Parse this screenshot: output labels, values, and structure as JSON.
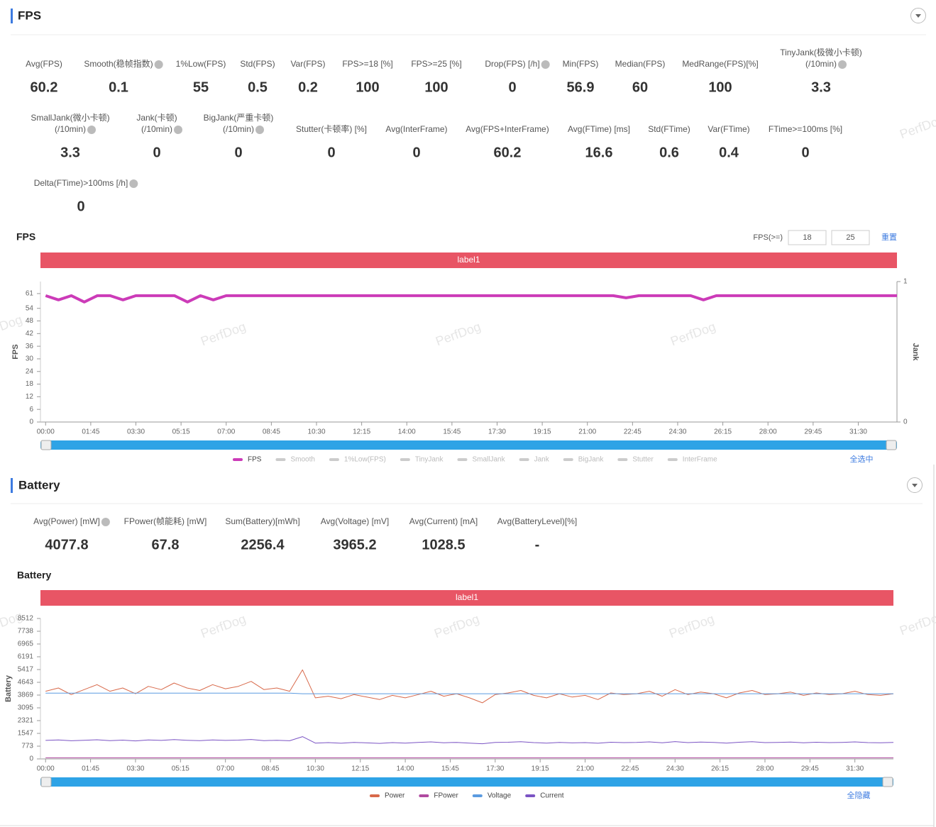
{
  "watermark": "PerfDog",
  "fps": {
    "title": "FPS",
    "metrics": [
      [
        {
          "label": [
            "Avg(FPS)"
          ],
          "value": 60.2
        },
        {
          "label": [
            "Smooth(稳帧指数)"
          ],
          "value": 0.1,
          "help": true
        },
        {
          "label": [
            "1%Low(FPS)"
          ],
          "value": 55
        },
        {
          "label": [
            "Std(FPS)"
          ],
          "value": 0.5
        },
        {
          "label": [
            "Var(FPS)"
          ],
          "value": 0.2
        },
        {
          "label": [
            "FPS>=18 [%]"
          ],
          "value": 100
        },
        {
          "label": [
            "FPS>=25 [%]"
          ],
          "value": 100
        },
        {
          "label": [
            "Drop(FPS) [/h]"
          ],
          "value": 0,
          "help": true
        },
        {
          "label": [
            "Min(FPS)"
          ],
          "value": 56.9
        },
        {
          "label": [
            "Median(FPS)"
          ],
          "value": 60
        },
        {
          "label": [
            "MedRange(FPS)[%]"
          ],
          "value": 100
        },
        {
          "label": [
            "TinyJank(极微小卡顿)",
            "(/10min)"
          ],
          "value": 3.3,
          "help": true
        }
      ],
      [
        {
          "label": [
            "SmallJank(微小卡顿)",
            "(/10min)"
          ],
          "value": 3.3,
          "help": true
        },
        {
          "label": [
            "Jank(卡顿)",
            "(/10min)"
          ],
          "value": 0,
          "help": true
        },
        {
          "label": [
            "BigJank(严重卡顿)",
            "(/10min)"
          ],
          "value": 0,
          "help": true
        },
        {
          "label": [
            "Stutter(卡顿率) [%]"
          ],
          "value": 0
        },
        {
          "label": [
            "Avg(InterFrame)"
          ],
          "value": 0
        },
        {
          "label": [
            "Avg(FPS+InterFrame)"
          ],
          "value": 60.2
        },
        {
          "label": [
            "Avg(FTime) [ms]"
          ],
          "value": 16.6
        },
        {
          "label": [
            "Std(FTime)"
          ],
          "value": 0.6
        },
        {
          "label": [
            "Var(FTime)"
          ],
          "value": 0.4
        },
        {
          "label": [
            "FTime>=100ms [%]"
          ],
          "value": 0
        }
      ],
      [
        {
          "label": [
            "Delta(FTime)>100ms [/h]"
          ],
          "value": 0,
          "help": true
        }
      ]
    ],
    "chart": {
      "type": "line",
      "title": "FPS",
      "threshold_label": "FPS(>=)",
      "thresholds": [
        18,
        25
      ],
      "reset": "重置",
      "band_label": "label1",
      "band_color": "#e85565",
      "y_label": "FPS",
      "y2_label": "Jank",
      "select_all": "全选中",
      "xlim": [
        -12,
        1980
      ],
      "ylim": [
        0,
        66.7
      ],
      "yticks": [
        0,
        6,
        12,
        18,
        24,
        30,
        36,
        42,
        48,
        54,
        61
      ],
      "y2lim": [
        0,
        1
      ],
      "y2ticks": [
        0,
        1
      ],
      "xticks": [
        {
          "value": 0,
          "label": "00:00"
        },
        {
          "value": 105,
          "label": "01:45"
        },
        {
          "value": 210,
          "label": "03:30"
        },
        {
          "value": 315,
          "label": "05:15"
        },
        {
          "value": 420,
          "label": "07:00"
        },
        {
          "value": 525,
          "label": "08:45"
        },
        {
          "value": 630,
          "label": "10:30"
        },
        {
          "value": 735,
          "label": "12:15"
        },
        {
          "value": 840,
          "label": "14:00"
        },
        {
          "value": 945,
          "label": "15:45"
        },
        {
          "value": 1050,
          "label": "17:30"
        },
        {
          "value": 1155,
          "label": "19:15"
        },
        {
          "value": 1260,
          "label": "21:00"
        },
        {
          "value": 1365,
          "label": "22:45"
        },
        {
          "value": 1470,
          "label": "24:30"
        },
        {
          "value": 1575,
          "label": "26:15"
        },
        {
          "value": 1680,
          "label": "28:00"
        },
        {
          "value": 1785,
          "label": "29:45"
        },
        {
          "value": 1890,
          "label": "31:30"
        }
      ],
      "x": [
        0,
        30,
        60,
        90,
        120,
        150,
        180,
        210,
        240,
        270,
        300,
        330,
        360,
        390,
        420,
        450,
        480,
        510,
        540,
        570,
        600,
        630,
        660,
        690,
        720,
        750,
        780,
        810,
        840,
        870,
        900,
        930,
        960,
        990,
        1020,
        1050,
        1080,
        1110,
        1140,
        1170,
        1200,
        1230,
        1260,
        1290,
        1320,
        1350,
        1380,
        1410,
        1440,
        1470,
        1500,
        1530,
        1560,
        1590,
        1620,
        1650,
        1680,
        1710,
        1740,
        1770,
        1800,
        1830,
        1860,
        1890,
        1920,
        1950,
        1980
      ],
      "series": [
        {
          "name": "FPS",
          "color": "#cc3bb8",
          "values": [
            60,
            58,
            60,
            57,
            60,
            60,
            58,
            60,
            60,
            60,
            60,
            57,
            60,
            58,
            60,
            60,
            60,
            60,
            60,
            60,
            60,
            60,
            60,
            60,
            60,
            60,
            60,
            60,
            60,
            60,
            60,
            60,
            60,
            60,
            60,
            60,
            60,
            60,
            60,
            60,
            60,
            60,
            60,
            60,
            60,
            59,
            60,
            60,
            60,
            60,
            60,
            58,
            60,
            60,
            60,
            60,
            60,
            60,
            60,
            60,
            60,
            60,
            60,
            60,
            60,
            60,
            60
          ]
        },
        {
          "name": "Smooth",
          "visible": false
        },
        {
          "name": "1%Low(FPS)",
          "visible": false
        },
        {
          "name": "TinyJank",
          "visible": false
        },
        {
          "name": "SmallJank",
          "visible": false
        },
        {
          "name": "Jank",
          "visible": false
        },
        {
          "name": "BigJank",
          "visible": false
        },
        {
          "name": "Stutter",
          "visible": false
        },
        {
          "name": "InterFrame",
          "visible": false
        }
      ]
    }
  },
  "battery": {
    "title": "Battery",
    "metrics": [
      [
        {
          "label": [
            "Avg(Power) [mW]"
          ],
          "value": 4077.8,
          "help": true
        },
        {
          "label": [
            "FPower(帧能耗) [mW]"
          ],
          "value": 67.8
        },
        {
          "label": [
            "Sum(Battery)[mWh]"
          ],
          "value": 2256.4
        },
        {
          "label": [
            "Avg(Voltage) [mV]"
          ],
          "value": 3965.2
        },
        {
          "label": [
            "Avg(Current) [mA]"
          ],
          "value": 1028.5
        },
        {
          "label": [
            "Avg(BatteryLevel)[%]"
          ],
          "value": "-"
        }
      ]
    ],
    "chart": {
      "type": "line",
      "title": "Battery",
      "band_label": "label1",
      "band_color": "#e85565",
      "y_label": "Battery",
      "select_all": "全隐藏",
      "xlim": [
        -12,
        1980
      ],
      "ylim": [
        0,
        8512
      ],
      "yticks": [
        0,
        773,
        1547,
        2321,
        3095,
        3869,
        4643,
        5417,
        6191,
        6965,
        7738,
        8512
      ],
      "xticks": [
        {
          "value": 0,
          "label": "00:00"
        },
        {
          "value": 105,
          "label": "01:45"
        },
        {
          "value": 210,
          "label": "03:30"
        },
        {
          "value": 315,
          "label": "05:15"
        },
        {
          "value": 420,
          "label": "07:00"
        },
        {
          "value": 525,
          "label": "08:45"
        },
        {
          "value": 630,
          "label": "10:30"
        },
        {
          "value": 735,
          "label": "12:15"
        },
        {
          "value": 840,
          "label": "14:00"
        },
        {
          "value": 945,
          "label": "15:45"
        },
        {
          "value": 1050,
          "label": "17:30"
        },
        {
          "value": 1155,
          "label": "19:15"
        },
        {
          "value": 1260,
          "label": "21:00"
        },
        {
          "value": 1365,
          "label": "22:45"
        },
        {
          "value": 1470,
          "label": "24:30"
        },
        {
          "value": 1575,
          "label": "26:15"
        },
        {
          "value": 1680,
          "label": "28:00"
        },
        {
          "value": 1785,
          "label": "29:45"
        },
        {
          "value": 1890,
          "label": "31:30"
        }
      ],
      "x": [
        0,
        30,
        60,
        90,
        120,
        150,
        180,
        210,
        240,
        270,
        300,
        330,
        360,
        390,
        420,
        450,
        480,
        510,
        540,
        570,
        600,
        630,
        660,
        690,
        720,
        750,
        780,
        810,
        840,
        870,
        900,
        930,
        960,
        990,
        1020,
        1050,
        1080,
        1110,
        1140,
        1170,
        1200,
        1230,
        1260,
        1290,
        1320,
        1350,
        1380,
        1410,
        1440,
        1470,
        1500,
        1530,
        1560,
        1590,
        1620,
        1650,
        1680,
        1710,
        1740,
        1770,
        1800,
        1830,
        1860,
        1890,
        1920,
        1950,
        1980
      ],
      "series": [
        {
          "name": "Power",
          "color": "#d8694a",
          "values": [
            4100,
            4300,
            3900,
            4200,
            4500,
            4100,
            4300,
            3950,
            4400,
            4200,
            4600,
            4300,
            4150,
            4500,
            4250,
            4400,
            4700,
            4200,
            4300,
            4100,
            5400,
            3700,
            3800,
            3650,
            3900,
            3750,
            3600,
            3850,
            3700,
            3900,
            4100,
            3800,
            3950,
            3700,
            3400,
            3900,
            4000,
            4150,
            3850,
            3700,
            3950,
            3750,
            3850,
            3600,
            4000,
            3900,
            3950,
            4100,
            3800,
            4200,
            3900,
            4050,
            3950,
            3700,
            4000,
            4150,
            3900,
            3950,
            4050,
            3850,
            4000,
            3900,
            3950,
            4100,
            3900,
            3850,
            3950
          ]
        },
        {
          "name": "FPower",
          "color": "#b04aa0",
          "values": [
            68,
            68,
            68,
            68,
            68,
            68,
            68,
            68,
            68,
            68,
            68,
            68,
            68,
            68,
            68,
            68,
            68,
            68,
            68,
            68,
            68,
            68,
            68,
            68,
            68,
            68,
            68,
            68,
            68,
            68,
            68,
            68,
            68,
            68,
            68,
            68,
            68,
            68,
            68,
            68,
            68,
            68,
            68,
            68,
            68,
            68,
            68,
            68,
            68,
            68,
            68,
            68,
            68,
            68,
            68,
            68,
            68,
            68,
            68,
            68,
            68,
            68,
            68,
            68,
            68,
            68,
            68
          ]
        },
        {
          "name": "Voltage",
          "color": "#5b9be0",
          "values": [
            3990,
            3990,
            3990,
            3990,
            3990,
            3990,
            3990,
            3990,
            3990,
            3990,
            3990,
            3990,
            3990,
            3990,
            3990,
            3990,
            3990,
            3990,
            3990,
            3990,
            3950,
            3950,
            3950,
            3950,
            3950,
            3950,
            3950,
            3950,
            3950,
            3950,
            3950,
            3950,
            3950,
            3950,
            3950,
            3950,
            3950,
            3950,
            3950,
            3950,
            3950,
            3950,
            3950,
            3950,
            3950,
            3950,
            3950,
            3950,
            3950,
            3950,
            3950,
            3950,
            3950,
            3950,
            3950,
            3950,
            3950,
            3950,
            3950,
            3950,
            3950,
            3950,
            3950,
            3950,
            3950,
            3950,
            3950
          ]
        },
        {
          "name": "Current",
          "color": "#7b54c4",
          "values": [
            1120,
            1150,
            1100,
            1130,
            1160,
            1110,
            1140,
            1090,
            1150,
            1120,
            1170,
            1130,
            1110,
            1150,
            1120,
            1140,
            1180,
            1110,
            1130,
            1100,
            1350,
            960,
            990,
            950,
            1000,
            970,
            940,
            990,
            960,
            1000,
            1030,
            980,
            1000,
            960,
            920,
            1000,
            1010,
            1040,
            990,
            960,
            1000,
            970,
            990,
            950,
            1010,
            990,
            1000,
            1030,
            980,
            1050,
            990,
            1020,
            1000,
            960,
            1010,
            1040,
            990,
            1000,
            1020,
            980,
            1010,
            990,
            1000,
            1030,
            990,
            980,
            1000
          ]
        }
      ]
    }
  }
}
